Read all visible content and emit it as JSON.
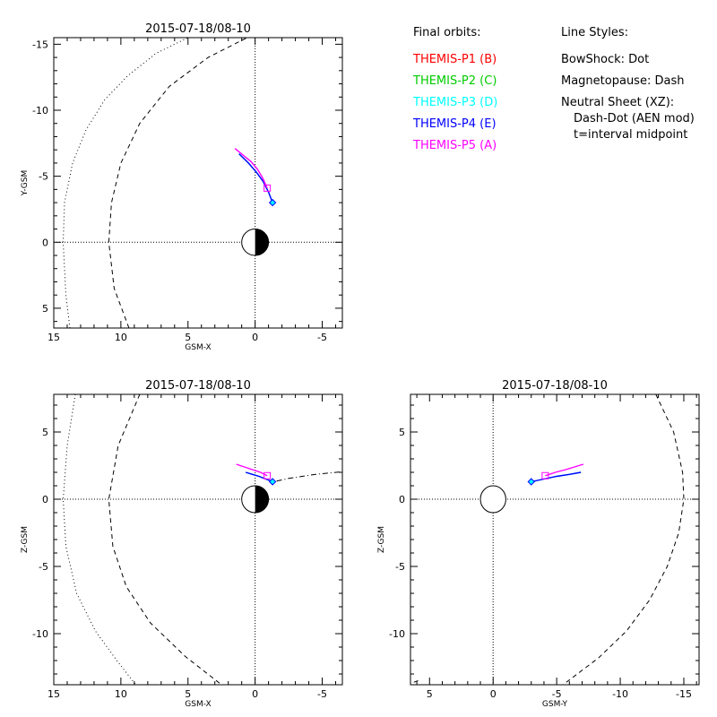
{
  "chart_data": [
    {
      "type": "line",
      "title": "2015-07-18/08-10",
      "xlabel": "GSM-X",
      "ylabel": "Y-GSM",
      "xlim": [
        15,
        -6.5
      ],
      "ylim": [
        6.5,
        -15.5
      ],
      "xticks": [
        15,
        10,
        5,
        0,
        -5
      ],
      "xtick_labels": [
        "15",
        "10",
        "5",
        "0",
        "-5"
      ],
      "yticks": [
        -15,
        -10,
        -5,
        0,
        5
      ],
      "ytick_labels": [
        "-15",
        "-10",
        "-5",
        "0",
        "5"
      ],
      "grid": false,
      "earth": {
        "center": [
          0,
          0
        ],
        "radius": 1
      },
      "series": [
        {
          "name": "BowShock",
          "style": "dot",
          "x": [
            13.8,
            14.1,
            14.3,
            14.2,
            13.6,
            12.6,
            11.2,
            9.5,
            7.4,
            4.0
          ],
          "y": [
            6.5,
            4.0,
            0.0,
            -3.0,
            -6.0,
            -8.5,
            -10.8,
            -12.6,
            -14.3,
            -16.0
          ]
        },
        {
          "name": "Magnetopause",
          "style": "dash",
          "x": [
            9.4,
            10.5,
            10.9,
            10.7,
            10.0,
            8.6,
            6.4,
            3.5,
            0.6
          ],
          "y": [
            6.5,
            3.5,
            0.0,
            -3.0,
            -6.0,
            -9.0,
            -11.8,
            -14.0,
            -15.5
          ]
        },
        {
          "name": "THEMIS-P3 (D)",
          "color": "#00ffff",
          "x": [
            -1.3,
            -1.0,
            -0.6,
            -0.1,
            0.5,
            1.2
          ],
          "y": [
            -3.0,
            -3.8,
            -4.6,
            -5.3,
            -6.0,
            -6.7
          ]
        },
        {
          "name": "THEMIS-P4 (E)",
          "color": "#0000ff",
          "x": [
            -1.3,
            -1.0,
            -0.6,
            -0.1,
            0.5,
            1.2
          ],
          "y": [
            -3.0,
            -3.8,
            -4.6,
            -5.3,
            -6.0,
            -6.7
          ]
        },
        {
          "name": "THEMIS-P5 (A)",
          "color": "#ff00ff",
          "x": [
            -0.9,
            -0.6,
            -0.2,
            0.3,
            0.9,
            1.5
          ],
          "y": [
            -4.1,
            -4.8,
            -5.5,
            -6.1,
            -6.6,
            -7.1
          ]
        }
      ],
      "markers": [
        {
          "shape": "diamond",
          "color": "#0000ff",
          "x": -1.3,
          "y": -3.0
        },
        {
          "shape": "square",
          "color": "#ff00ff",
          "x": -0.9,
          "y": -4.1
        }
      ]
    },
    {
      "type": "line",
      "title": "2015-07-18/08-10",
      "xlabel": "GSM-X",
      "ylabel": "Z-GSM",
      "xlim": [
        15,
        -6.5
      ],
      "ylim": [
        -13.8,
        7.8
      ],
      "xticks": [
        15,
        10,
        5,
        0,
        -5
      ],
      "xtick_labels": [
        "15",
        "10",
        "5",
        "0",
        "-5"
      ],
      "yticks": [
        -10,
        -5,
        0,
        5
      ],
      "ytick_labels": [
        "-10",
        "-5",
        "0",
        "5"
      ],
      "grid": false,
      "earth": {
        "center": [
          0,
          0
        ],
        "radius": 1
      },
      "series": [
        {
          "name": "BowShock",
          "style": "dot",
          "x": [
            13.4,
            14.0,
            14.3,
            14.1,
            13.3,
            11.9,
            10.3,
            8.9
          ],
          "y": [
            7.8,
            4.0,
            0.0,
            -3.5,
            -7.0,
            -9.8,
            -12.0,
            -13.8
          ]
        },
        {
          "name": "Magnetopause",
          "style": "dash",
          "x": [
            8.6,
            10.2,
            10.9,
            10.6,
            9.6,
            7.8,
            5.2,
            2.5
          ],
          "y": [
            7.8,
            4.0,
            0.0,
            -3.5,
            -6.5,
            -9.2,
            -11.7,
            -13.8
          ]
        },
        {
          "name": "Neutral Sheet",
          "style": "dashdot",
          "x": [
            -1.6,
            -2.5,
            -3.5,
            -4.5,
            -5.5,
            -6.5
          ],
          "y": [
            1.35,
            1.55,
            1.7,
            1.85,
            1.95,
            2.05
          ]
        },
        {
          "name": "THEMIS-P3 (D)",
          "color": "#00ffff",
          "x": [
            -1.3,
            -0.8,
            -0.3,
            0.2,
            0.7
          ],
          "y": [
            1.3,
            1.5,
            1.7,
            1.85,
            2.0
          ]
        },
        {
          "name": "THEMIS-P4 (E)",
          "color": "#0000ff",
          "x": [
            -1.3,
            -0.8,
            -0.3,
            0.2,
            0.7
          ],
          "y": [
            1.3,
            1.5,
            1.7,
            1.85,
            2.0
          ]
        },
        {
          "name": "THEMIS-P5 (A)",
          "color": "#ff00ff",
          "x": [
            -0.9,
            -0.4,
            0.2,
            0.8,
            1.4
          ],
          "y": [
            1.75,
            2.0,
            2.2,
            2.4,
            2.6
          ]
        }
      ],
      "markers": [
        {
          "shape": "diamond",
          "color": "#0000ff",
          "x": -1.3,
          "y": 1.3
        },
        {
          "shape": "square",
          "color": "#ff00ff",
          "x": -0.9,
          "y": 1.75
        }
      ]
    },
    {
      "type": "line",
      "title": "2015-07-18/08-10",
      "xlabel": "GSM-Y",
      "ylabel": "Z-GSM",
      "xlim": [
        6.5,
        -16.2
      ],
      "ylim": [
        -13.8,
        7.8
      ],
      "xticks": [
        5,
        0,
        -5,
        -10,
        -15
      ],
      "xtick_labels": [
        "5",
        "0",
        "-5",
        "-10",
        "-15"
      ],
      "yticks": [
        -10,
        -5,
        0,
        5
      ],
      "ytick_labels": [
        "-10",
        "-5",
        "0",
        "5"
      ],
      "grid": false,
      "earth": {
        "center": [
          0,
          0
        ],
        "radius": 1
      },
      "series": [
        {
          "name": "Magnetopause",
          "style": "dash",
          "x": [
            -12.8,
            -14.2,
            -14.9,
            -15.0,
            -14.6,
            -13.7,
            -12.3,
            -10.5,
            -8.3,
            -5.5
          ],
          "y": [
            7.8,
            5.0,
            2.0,
            0.0,
            -2.5,
            -5.0,
            -7.5,
            -9.8,
            -11.8,
            -13.8
          ]
        },
        {
          "name": "BowShock",
          "style": "dash",
          "x": [
            5.9,
            6.5
          ],
          "y": [
            -13.5,
            -13.7
          ]
        },
        {
          "name": "THEMIS-P3 (D)",
          "color": "#00ffff",
          "x": [
            -3.0,
            -4.0,
            -5.0,
            -6.0,
            -6.9
          ],
          "y": [
            1.3,
            1.5,
            1.7,
            1.85,
            2.0
          ]
        },
        {
          "name": "THEMIS-P4 (E)",
          "color": "#0000ff",
          "x": [
            -3.0,
            -4.0,
            -5.0,
            -6.0,
            -6.9
          ],
          "y": [
            1.3,
            1.5,
            1.7,
            1.85,
            2.0
          ]
        },
        {
          "name": "THEMIS-P5 (A)",
          "color": "#ff00ff",
          "x": [
            -4.1,
            -4.9,
            -5.7,
            -6.4,
            -7.1
          ],
          "y": [
            1.75,
            2.0,
            2.2,
            2.4,
            2.6
          ]
        }
      ],
      "markers": [
        {
          "shape": "diamond",
          "color": "#0000ff",
          "x": -3.0,
          "y": 1.3
        },
        {
          "shape": "square",
          "color": "#ff00ff",
          "x": -4.1,
          "y": 1.75
        }
      ]
    }
  ],
  "legend": {
    "orbits_heading": "Final orbits:",
    "probes": [
      {
        "label": "THEMIS-P1 (B)",
        "color": "#ff0000"
      },
      {
        "label": "THEMIS-P2 (C)",
        "color": "#00cc00"
      },
      {
        "label": "THEMIS-P3 (D)",
        "color": "#00ffff"
      },
      {
        "label": "THEMIS-P4 (E)",
        "color": "#0000ff"
      },
      {
        "label": "THEMIS-P5 (A)",
        "color": "#ff00ff"
      }
    ],
    "styles_heading": "Line Styles:",
    "styles": [
      "BowShock: Dot",
      "Magnetopause: Dash",
      "Neutral Sheet (XZ):",
      "Dash-Dot (AEN mod)",
      "t=interval midpoint"
    ]
  }
}
